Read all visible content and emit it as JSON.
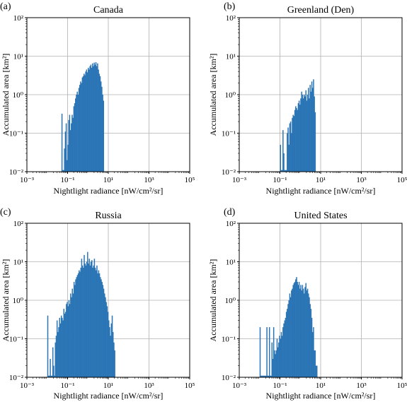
{
  "figure": {
    "xlabel": "Nightlight radiance [nW/cm²/sr]",
    "ylabel": "Accumulated area [km²]",
    "bar_color": "#2b75b6",
    "grid_color": "#b0b0b0"
  },
  "chart_data": [
    {
      "type": "bar",
      "panel_label": "(a)",
      "title": "Canada",
      "xscale": "log",
      "yscale": "log",
      "xlim": [
        0.001,
        100000
      ],
      "ylim": [
        0.01,
        100
      ],
      "xticks": [
        "10⁻³",
        "10⁻¹",
        "10¹",
        "10³",
        "10⁵"
      ],
      "yticks": [
        "10⁻²",
        "10⁻¹",
        "10⁰",
        "10¹",
        "10²"
      ],
      "grid": true,
      "xlabel": "Nightlight radiance [nW/cm²/sr]",
      "ylabel": "Accumulated area [km²]",
      "x_start": 0.05,
      "bins_per_decade": 24,
      "values": [
        0.32,
        0.011,
        0.011,
        0.04,
        0.11,
        0.18,
        0.02,
        0.05,
        0.22,
        0.3,
        0.12,
        0.18,
        0.3,
        0.25,
        0.5,
        0.6,
        0.8,
        1.0,
        1.2,
        1.0,
        1.5,
        1.8,
        2.2,
        2.0,
        2.8,
        3.0,
        3.5,
        3.2,
        4.0,
        4.5,
        3.8,
        5.0,
        4.5,
        5.5,
        6.0,
        5.0,
        6.5,
        5.5,
        6.8,
        6.0,
        7.0,
        5.5,
        6.5,
        4.5,
        3.5,
        3.0,
        2.2,
        1.6,
        1.0,
        0.7
      ]
    },
    {
      "type": "bar",
      "panel_label": "(b)",
      "title": "Greenland (Den)",
      "xscale": "log",
      "yscale": "log",
      "xlim": [
        0.001,
        100000
      ],
      "ylim": [
        0.01,
        100
      ],
      "xticks": [
        "10⁻³",
        "10⁻¹",
        "10¹",
        "10³",
        "10⁵"
      ],
      "yticks": [
        "10⁻²",
        "10⁻¹",
        "10⁰",
        "10¹",
        "10²"
      ],
      "grid": true,
      "xlabel": "Nightlight radiance [nW/cm²/sr]",
      "ylabel": "Accumulated area [km²]",
      "x_start": 0.1,
      "bins_per_decade": 24,
      "values": [
        0.05,
        0.011,
        0.011,
        0.12,
        0.03,
        0.011,
        0.011,
        0.011,
        0.1,
        0.14,
        0.05,
        0.18,
        0.2,
        0.1,
        0.25,
        0.3,
        0.28,
        0.4,
        0.5,
        0.45,
        0.4,
        0.6,
        0.7,
        0.55,
        0.8,
        1.2,
        1.0,
        0.8,
        1.0,
        0.9,
        1.3,
        0.7,
        1.0,
        1.5,
        0.8,
        1.8,
        1.2,
        2.2,
        1.5,
        2.5,
        0.9,
        0.35
      ]
    },
    {
      "type": "bar",
      "panel_label": "(c)",
      "title": "Russia",
      "xscale": "log",
      "yscale": "log",
      "xlim": [
        0.001,
        100000
      ],
      "ylim": [
        0.01,
        100
      ],
      "xticks": [
        "10⁻³",
        "10⁻¹",
        "10¹",
        "10³",
        "10⁵"
      ],
      "yticks": [
        "10⁻²",
        "10⁻¹",
        "10⁰",
        "10¹",
        "10²"
      ],
      "grid": true,
      "xlabel": "Nightlight radiance [nW/cm²/sr]",
      "ylabel": "Accumulated area [km²]",
      "x_start": 0.01,
      "bins_per_decade": 24,
      "values": [
        0.4,
        0.011,
        0.011,
        0.03,
        0.011,
        0.011,
        0.06,
        0.02,
        0.011,
        0.08,
        0.12,
        0.3,
        0.15,
        0.2,
        0.35,
        0.25,
        0.4,
        0.35,
        0.3,
        0.6,
        0.45,
        0.5,
        0.8,
        0.9,
        0.7,
        1.0,
        0.8,
        1.5,
        1.2,
        2.0,
        1.5,
        3.0,
        2.5,
        3.5,
        4.0,
        4.5,
        5.0,
        6.0,
        5.5,
        7.0,
        12.0,
        8.0,
        7.0,
        15.0,
        9.0,
        8.0,
        10.0,
        18.0,
        9.0,
        12.0,
        8.0,
        10.0,
        11.0,
        7.0,
        8.0,
        12.0,
        7.0,
        6.0,
        8.0,
        5.0,
        6.0,
        5.0,
        4.0,
        3.5,
        3.0,
        2.5,
        2.0,
        1.5,
        1.2,
        0.9,
        0.7,
        0.5,
        0.3,
        0.2,
        0.12,
        0.25,
        0.4,
        0.15,
        0.08,
        0.05
      ]
    },
    {
      "type": "bar",
      "panel_label": "(d)",
      "title": "United States",
      "xscale": "log",
      "yscale": "log",
      "xlim": [
        0.001,
        100000
      ],
      "ylim": [
        0.01,
        100
      ],
      "xticks": [
        "10⁻³",
        "10⁻¹",
        "10¹",
        "10³",
        "10⁵"
      ],
      "yticks": [
        "10⁻²",
        "10⁻¹",
        "10⁰",
        "10¹",
        "10²"
      ],
      "grid": true,
      "xlabel": "Nightlight radiance [nW/cm²/sr]",
      "ylabel": "Accumulated area [km²]",
      "x_start": 0.01,
      "bins_per_decade": 24,
      "values": [
        0.2,
        0.011,
        0.011,
        0.011,
        0.011,
        0.011,
        0.011,
        0.011,
        0.2,
        0.011,
        0.011,
        0.2,
        0.011,
        0.011,
        0.08,
        0.03,
        0.2,
        0.05,
        0.04,
        0.05,
        0.1,
        0.06,
        0.08,
        0.12,
        0.1,
        0.15,
        0.12,
        0.2,
        0.25,
        0.3,
        0.35,
        0.5,
        0.6,
        0.8,
        1.0,
        1.5,
        1.2,
        1.8,
        2.0,
        2.5,
        2.8,
        3.0,
        3.5,
        4.0,
        3.0,
        2.5,
        3.0,
        2.0,
        2.5,
        1.8,
        2.5,
        2.0,
        1.5,
        2.2,
        2.8,
        1.8,
        2.0,
        1.5,
        1.2,
        0.8,
        0.6,
        0.35,
        0.15,
        0.2,
        0.05,
        0.05,
        0.02,
        0.02
      ]
    }
  ]
}
